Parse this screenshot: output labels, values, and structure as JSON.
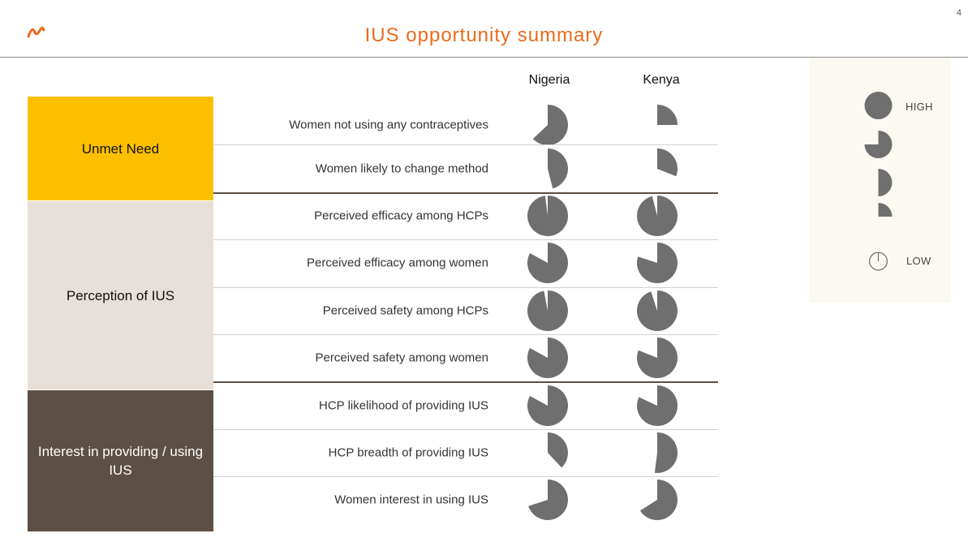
{
  "page_number": "4",
  "title": "IUS opportunity summary",
  "columns": [
    "Nigeria",
    "Kenya"
  ],
  "categories": [
    {
      "label": "Unmet Need",
      "bg": "#fdc000",
      "color": "#111111"
    },
    {
      "label": "Perception of IUS",
      "bg": "#e7dfd9",
      "color": "#111111"
    },
    {
      "label": "Interest in providing / using IUS",
      "bg": "#5c4f45",
      "color": "#ffffff"
    }
  ],
  "rows": [
    {
      "label": "Women not using any contraceptives",
      "nigeria": 0.63,
      "kenya": 0.25
    },
    {
      "label": "Women likely to change method",
      "nigeria": 0.46,
      "kenya": 0.31
    },
    {
      "label": "Perceived efficacy among HCPs",
      "nigeria": 0.98,
      "kenya": 0.96
    },
    {
      "label": "Perceived efficacy among women",
      "nigeria": 0.83,
      "kenya": 0.8
    },
    {
      "label": "Perceived safety among HCPs",
      "nigeria": 0.97,
      "kenya": 0.95
    },
    {
      "label": "Perceived safety among women",
      "nigeria": 0.83,
      "kenya": 0.81
    },
    {
      "label": "HCP likelihood of providing IUS",
      "nigeria": 0.83,
      "kenya": 0.82
    },
    {
      "label": "HCP breadth of providing IUS",
      "nigeria": 0.38,
      "kenya": 0.52
    },
    {
      "label": "Women interest in using IUS",
      "nigeria": 0.7,
      "kenya": 0.66
    }
  ],
  "legend": {
    "high_label": "HIGH",
    "low_label": "LOW",
    "levels": [
      1.0,
      0.75,
      0.5,
      0.25,
      0
    ]
  },
  "colors": {
    "accent": "#ea6b1c",
    "pie": "#6f6f6f"
  }
}
